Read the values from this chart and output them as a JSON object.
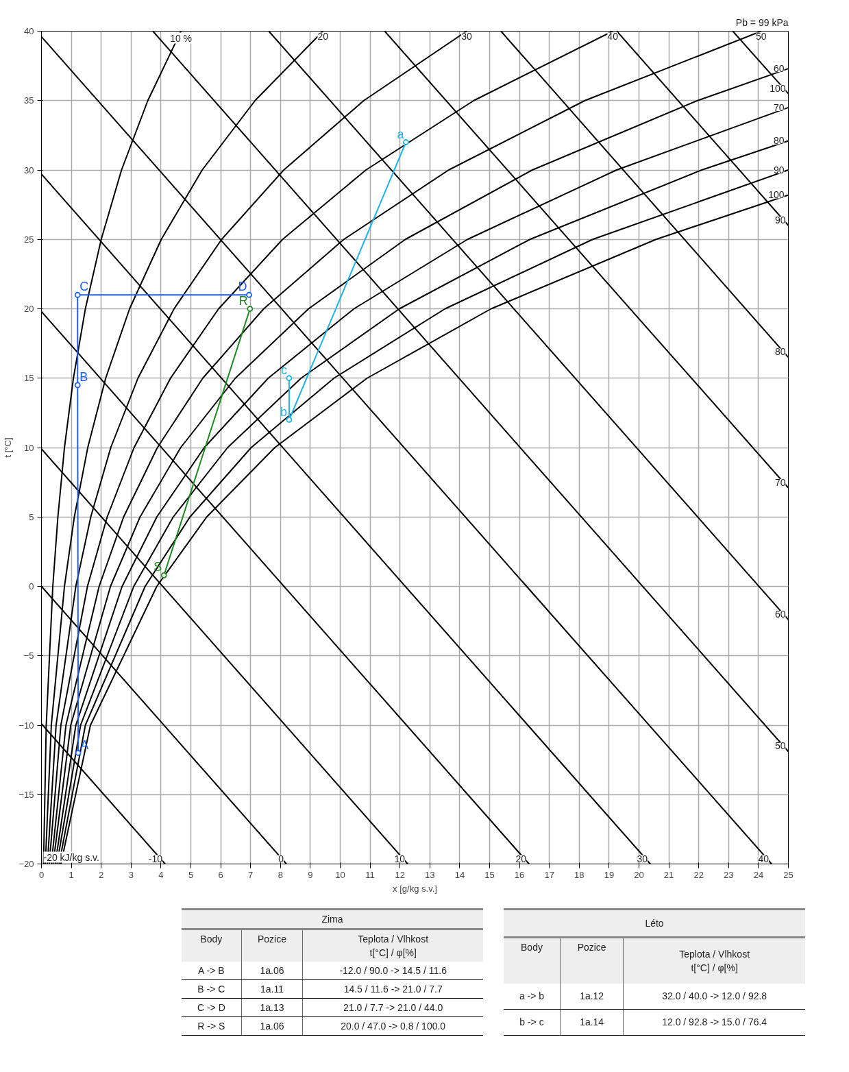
{
  "chart_data": {
    "type": "line",
    "xlabel": "x [g/kg s.v.]",
    "ylabel": "t [°C]",
    "xlim": [
      0,
      25
    ],
    "ylim": [
      -20,
      40
    ],
    "xticks": [
      0,
      1,
      2,
      3,
      4,
      5,
      6,
      7,
      8,
      9,
      10,
      11,
      12,
      13,
      14,
      15,
      16,
      17,
      18,
      19,
      20,
      21,
      22,
      23,
      24,
      25
    ],
    "yticks": [
      -20,
      -15,
      -10,
      -5,
      0,
      5,
      10,
      15,
      20,
      25,
      30,
      35,
      40
    ],
    "grid": true,
    "marker": "none",
    "series": [
      {
        "name": "10 %",
        "color": "#000000",
        "x": [
          0.07,
          0.16,
          0.38,
          0.55,
          0.77,
          1.07,
          1.47,
          2.0,
          2.68,
          3.56,
          4.67
        ],
        "values": [
          -20,
          -10,
          0,
          5,
          10,
          15,
          20,
          25,
          30,
          35,
          40
        ]
      },
      {
        "name": "20",
        "color": "#000000",
        "x": [
          0.13,
          0.33,
          0.77,
          1.1,
          1.55,
          2.15,
          2.95,
          4.01,
          5.38,
          7.15,
          9.42
        ],
        "values": [
          -20,
          -10,
          0,
          5,
          10,
          15,
          20,
          25,
          30,
          35,
          40
        ]
      },
      {
        "name": "30",
        "color": "#000000",
        "x": [
          0.2,
          0.49,
          1.15,
          1.65,
          2.32,
          3.23,
          4.44,
          6.03,
          8.11,
          10.79,
          14.23
        ],
        "values": [
          -20,
          -10,
          0,
          5,
          10,
          15,
          20,
          25,
          30,
          35,
          40
        ]
      },
      {
        "name": "40",
        "color": "#000000",
        "x": [
          0.26,
          0.65,
          1.54,
          2.2,
          3.1,
          4.32,
          5.93,
          8.07,
          10.86,
          14.47,
          19.12
        ],
        "values": [
          -20,
          -10,
          0,
          5,
          10,
          15,
          20,
          25,
          30,
          35,
          40
        ]
      },
      {
        "name": "50",
        "color": "#000000",
        "x": [
          0.33,
          0.82,
          1.93,
          2.75,
          3.88,
          5.4,
          7.44,
          10.12,
          13.63,
          18.19,
          24.09
        ],
        "values": [
          -20,
          -10,
          0,
          5,
          10,
          15,
          20,
          25,
          30,
          35,
          40
        ]
      },
      {
        "name": "60",
        "color": "#000000",
        "x": [
          0.39,
          0.98,
          2.31,
          3.3,
          4.66,
          6.49,
          8.94,
          12.18,
          16.43,
          21.96,
          25
        ],
        "values": [
          -20,
          -10,
          0,
          5,
          10,
          15,
          20,
          25,
          30,
          35,
          37.3
        ]
      },
      {
        "name": "70",
        "color": "#000000",
        "x": [
          0.46,
          1.15,
          2.7,
          3.86,
          5.45,
          7.59,
          10.46,
          14.26,
          19.25,
          25
        ],
        "values": [
          -20,
          -10,
          0,
          5,
          10,
          15,
          20,
          25,
          30,
          34.5
        ]
      },
      {
        "name": "80",
        "color": "#000000",
        "x": [
          0.52,
          1.31,
          3.09,
          4.41,
          6.23,
          8.69,
          11.98,
          16.35,
          22.1,
          25
        ],
        "values": [
          -20,
          -10,
          0,
          5,
          10,
          15,
          20,
          25,
          30,
          32.1
        ]
      },
      {
        "name": "90",
        "color": "#000000",
        "x": [
          0.59,
          1.47,
          3.47,
          4.97,
          7.02,
          9.79,
          13.51,
          18.45,
          25
        ],
        "values": [
          -20,
          -10,
          0,
          5,
          10,
          15,
          20,
          25,
          30.0
        ]
      },
      {
        "name": "100",
        "color": "#000000",
        "x": [
          0.65,
          1.64,
          3.86,
          5.53,
          7.81,
          10.9,
          15.05,
          20.57,
          25
        ],
        "values": [
          -20,
          -10,
          0,
          5,
          10,
          15,
          20,
          25,
          28.2
        ]
      },
      {
        "name": "-10",
        "color": "#000000",
        "x": [
          0,
          4.14
        ],
        "values": [
          -9.9,
          -20
        ]
      },
      {
        "name": "0",
        "color": "#000000",
        "x": [
          0,
          8.2
        ],
        "values": [
          0,
          -20
        ]
      },
      {
        "name": "10",
        "color": "#000000",
        "x": [
          0,
          12.26
        ],
        "values": [
          9.9,
          -20
        ]
      },
      {
        "name": "20",
        "color": "#000000",
        "x": [
          0,
          16.32
        ],
        "values": [
          19.8,
          -20
        ]
      },
      {
        "name": "30",
        "color": "#000000",
        "x": [
          0,
          20.38
        ],
        "values": [
          29.7,
          -20
        ]
      },
      {
        "name": "40",
        "color": "#000000",
        "x": [
          0,
          24.44
        ],
        "values": [
          39.6,
          -20
        ]
      },
      {
        "name": "50",
        "color": "#000000",
        "x": [
          3.73,
          25
        ],
        "values": [
          40,
          -11.9
        ]
      },
      {
        "name": "60",
        "color": "#000000",
        "x": [
          7.61,
          25
        ],
        "values": [
          40,
          -2.4
        ]
      },
      {
        "name": "70",
        "color": "#000000",
        "x": [
          11.49,
          25
        ],
        "values": [
          40,
          7.1
        ]
      },
      {
        "name": "80",
        "color": "#000000",
        "x": [
          15.38,
          25
        ],
        "values": [
          40,
          16.5
        ]
      },
      {
        "name": "90",
        "color": "#000000",
        "x": [
          19.26,
          25
        ],
        "values": [
          40,
          26.0
        ]
      },
      {
        "name": "100",
        "color": "#000000",
        "x": [
          23.14,
          25
        ],
        "values": [
          40,
          35.5
        ]
      },
      {
        "color": "#1f5ff0",
        "marker": "circle",
        "x": [
          1.23,
          1.21,
          1.21,
          6.95
        ],
        "values": [
          -12,
          14.5,
          21,
          21
        ]
      },
      {
        "color": "#1c8a1c",
        "marker": "circle",
        "x": [
          6.98,
          4.1
        ],
        "values": [
          20,
          0.8
        ]
      },
      {
        "color": "#1eb4e6",
        "marker": "circle",
        "x": [
          12.2,
          8.29,
          8.29
        ],
        "values": [
          32,
          12,
          15
        ]
      }
    ],
    "annotations": [
      "Pb = 99 kPa",
      {
        "text": "-20 kJ/kg s.v.",
        "x": 0,
        "y": -20
      },
      {
        "text": "A",
        "x": 1.23,
        "y": -12
      },
      {
        "text": "B",
        "x": 1.21,
        "y": 14.5
      },
      {
        "text": "C",
        "x": 1.21,
        "y": 21
      },
      {
        "text": "D",
        "x": 6.95,
        "y": 21
      },
      {
        "text": "R",
        "x": 6.98,
        "y": 20
      },
      {
        "text": "S",
        "x": 4.1,
        "y": 0.8
      },
      {
        "text": "a",
        "x": 12.2,
        "y": 32
      },
      {
        "text": "b",
        "x": 8.29,
        "y": 12
      },
      {
        "text": "c",
        "x": 8.29,
        "y": 15
      },
      "Zima",
      "Body",
      "Pozice",
      "Teplota / Vlhkost",
      "t[°C] / φ[%]",
      "A -> B",
      "1a.06",
      "-12.0 / 90.0 -> 14.5 / 11.6",
      "B -> C",
      "1a.11",
      "14.5 / 11.6 -> 21.0 / 7.7",
      "C -> D",
      "1a.13",
      "21.0 / 7.7 -> 21.0 / 44.0",
      "R -> S",
      "1a.06",
      "20.0 / 47.0 -> 0.8 / 100.0",
      "Léto",
      "Body",
      "Pozice",
      "Teplota / Vlhkost",
      "t[°C] / φ[%]",
      "a -> b",
      "1a.12",
      "32.0 / 40.0 -> 12.0 / 92.8",
      "b -> c",
      "1a.14",
      "12.0 / 92.8 -> 15.0 / 76.4"
    ]
  }
}
